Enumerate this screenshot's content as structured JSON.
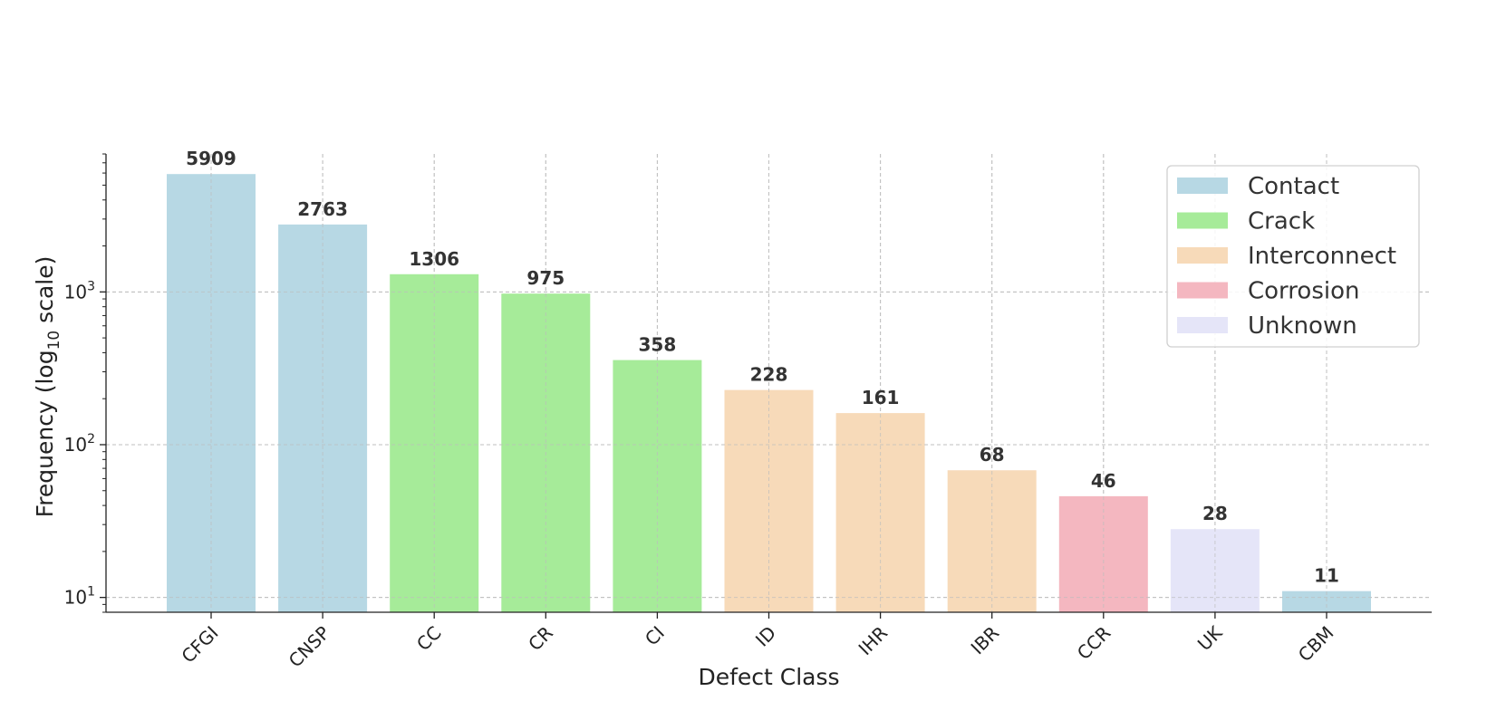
{
  "chart_data": {
    "type": "bar",
    "title": "",
    "xlabel": "Defect Class",
    "ylabel_main": "Frequency (log",
    "ylabel_sub": "10",
    "ylabel_end": " scale)",
    "yscale": "log",
    "ylim": [
      8,
      8000
    ],
    "yticks": [
      10,
      100,
      1000
    ],
    "ytick_bases": [
      "10",
      "10",
      "10"
    ],
    "ytick_exponents": [
      "1",
      "2",
      "3"
    ],
    "grid": true,
    "legend_position": "top-right",
    "categories": [
      "CFGI",
      "CNSP",
      "CC",
      "CR",
      "CI",
      "ID",
      "IHR",
      "IBR",
      "CCR",
      "UK",
      "CBM"
    ],
    "values": [
      5909,
      2763,
      1306,
      975,
      358,
      228,
      161,
      68,
      46,
      28,
      11
    ],
    "value_labels": [
      "5909",
      "2763",
      "1306",
      "975",
      "358",
      "228",
      "161",
      "68",
      "46",
      "28",
      "11"
    ],
    "groups": [
      "Contact",
      "Contact",
      "Crack",
      "Crack",
      "Crack",
      "Interconnect",
      "Interconnect",
      "Interconnect",
      "Corrosion",
      "Unknown",
      "Contact"
    ],
    "legend": [
      {
        "name": "Contact",
        "color": "#b7d8e4"
      },
      {
        "name": "Crack",
        "color": "#a6eb99"
      },
      {
        "name": "Interconnect",
        "color": "#f7dab9"
      },
      {
        "name": "Corrosion",
        "color": "#f4b7c0"
      },
      {
        "name": "Unknown",
        "color": "#e5e5f8"
      }
    ]
  }
}
